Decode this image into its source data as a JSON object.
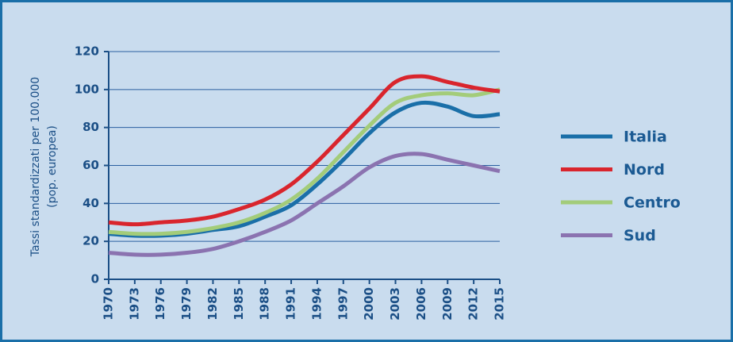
{
  "chart_data": {
    "type": "line",
    "y_label_lines": [
      "Tassi standardizzati per 100.000",
      "(pop. europea)"
    ],
    "x": [
      1970,
      1973,
      1976,
      1979,
      1982,
      1985,
      1988,
      1991,
      1994,
      1997,
      2000,
      2003,
      2006,
      2009,
      2012,
      2015
    ],
    "xlim": [
      1970,
      2015
    ],
    "xticks": [
      1970,
      1973,
      1976,
      1979,
      1982,
      1985,
      1988,
      1991,
      1994,
      1997,
      2000,
      2003,
      2006,
      2009,
      2012,
      2015
    ],
    "ylim": [
      0,
      120
    ],
    "yticks": [
      0,
      20,
      40,
      60,
      80,
      100,
      120
    ],
    "grid": true,
    "legend": "right",
    "series": [
      {
        "name": "Italia",
        "color": "#1a6fa8",
        "values": [
          24,
          23,
          23,
          24,
          26,
          28,
          33,
          39,
          50,
          63,
          77,
          88,
          93,
          91,
          86,
          87
        ]
      },
      {
        "name": "Nord",
        "color": "#d9252d",
        "values": [
          30,
          29,
          30,
          31,
          33,
          37,
          42,
          50,
          62,
          76,
          90,
          104,
          107,
          104,
          101,
          99
        ]
      },
      {
        "name": "Centro",
        "color": "#a3cc7a",
        "values": [
          25,
          24,
          24,
          25,
          27,
          30,
          35,
          42,
          53,
          67,
          81,
          93,
          97,
          98,
          97,
          100
        ]
      },
      {
        "name": "Sud",
        "color": "#8b73b0",
        "values": [
          14,
          13,
          13,
          14,
          16,
          20,
          25,
          31,
          40,
          49,
          59,
          65,
          66,
          63,
          60,
          57
        ]
      }
    ]
  }
}
